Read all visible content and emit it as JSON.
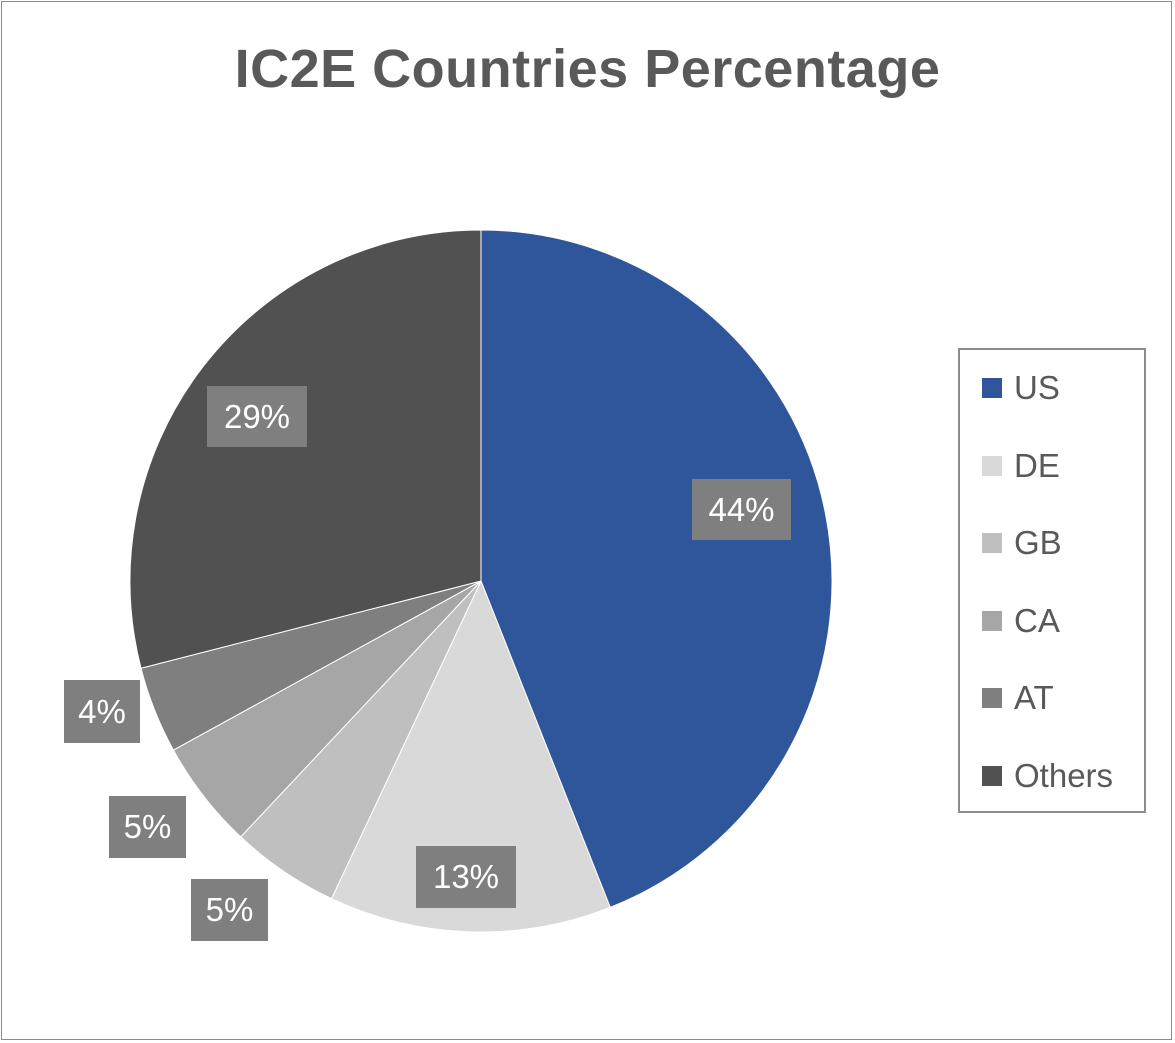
{
  "chart_data": {
    "type": "pie",
    "title": "IC2E Countries Percentage",
    "categories": [
      "US",
      "DE",
      "GB",
      "CA",
      "AT",
      "Others"
    ],
    "values": [
      44,
      13,
      5,
      5,
      4,
      29
    ],
    "labels": [
      "44%",
      "13%",
      "5%",
      "5%",
      "4%",
      "29%"
    ],
    "colors": [
      "#2f569a",
      "#d9d9d9",
      "#bfbfbf",
      "#a6a6a6",
      "#7f7f7f",
      "#515151"
    ],
    "legend_position": "right",
    "start_angle": "12 o'clock, clockwise"
  }
}
